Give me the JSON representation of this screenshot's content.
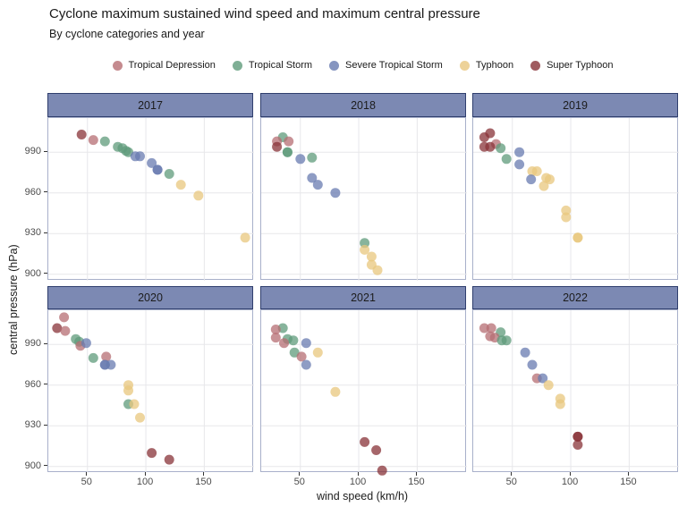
{
  "header": {
    "title": "Cyclone maximum sustained wind speed and maximum central pressure",
    "subtitle": "By cyclone categories and year"
  },
  "axes": {
    "x_label": "wind speed (km/h)",
    "y_label": "central pressure (hPa)",
    "x_tick_labels": [
      "50",
      "100",
      "150"
    ],
    "y_tick_labels": [
      "990",
      "960",
      "930",
      "900"
    ]
  },
  "chart_data": {
    "type": "scatter",
    "title": "Cyclone maximum sustained wind speed and maximum central pressure",
    "subtitle": "By cyclone categories and year",
    "xlabel": "wind speed (km/h)",
    "ylabel": "central pressure (hPa)",
    "xlim": [
      16.5,
      192.6
    ],
    "ylim": [
      895.2,
      1015.2
    ],
    "x_ticks": [
      50,
      100,
      150
    ],
    "y_ticks": [
      990,
      960,
      930,
      900
    ],
    "grid": true,
    "legend_position": "top",
    "point_opacity": 0.75,
    "categories": [
      {
        "code": "TD",
        "label": "Tropical Depression",
        "color": "#b66e73"
      },
      {
        "code": "TS",
        "label": "Tropical Storm",
        "color": "#5f9b7b"
      },
      {
        "code": "STS",
        "label": "Severe Tropical Storm",
        "color": "#687bb0"
      },
      {
        "code": "TY",
        "label": "Typhoon",
        "color": "#e8c77e"
      },
      {
        "code": "STY",
        "label": "Super Typhoon",
        "color": "#883338"
      }
    ],
    "facets": [
      {
        "label": "2017",
        "points": [
          [
            "STY",
            45,
            1003
          ],
          [
            "TD",
            55,
            999
          ],
          [
            "TS",
            65,
            998
          ],
          [
            "TS",
            76,
            994
          ],
          [
            "TS",
            80,
            993
          ],
          [
            "TS",
            83,
            991
          ],
          [
            "TS",
            85,
            990
          ],
          [
            "STS",
            91,
            987
          ],
          [
            "STS",
            95,
            987
          ],
          [
            "STS",
            105,
            982
          ],
          [
            "STS",
            110,
            977
          ],
          [
            "STS",
            110,
            977
          ],
          [
            "TS",
            120,
            974
          ],
          [
            "TY",
            130,
            966
          ],
          [
            "TY",
            145,
            958
          ],
          [
            "TY",
            185,
            927
          ]
        ]
      },
      {
        "label": "2018",
        "points": [
          [
            "TS",
            35,
            1001
          ],
          [
            "TD",
            30,
            998
          ],
          [
            "TD",
            40,
            998
          ],
          [
            "STY",
            30,
            994
          ],
          [
            "TS",
            39,
            990
          ],
          [
            "TS",
            39,
            990
          ],
          [
            "STS",
            50,
            985
          ],
          [
            "TS",
            60,
            986
          ],
          [
            "STS",
            60,
            971
          ],
          [
            "STS",
            65,
            966
          ],
          [
            "STS",
            80,
            960
          ],
          [
            "TS",
            105,
            923
          ],
          [
            "TY",
            105,
            918
          ],
          [
            "TY",
            111,
            913
          ],
          [
            "TY",
            111,
            907
          ],
          [
            "TY",
            116,
            903
          ]
        ]
      },
      {
        "label": "2019",
        "points": [
          [
            "STY",
            31,
            1004
          ],
          [
            "STY",
            26,
            1001
          ],
          [
            "TD",
            36,
            996
          ],
          [
            "STY",
            26,
            994
          ],
          [
            "STY",
            31,
            994
          ],
          [
            "TS",
            40,
            993
          ],
          [
            "STS",
            56,
            990
          ],
          [
            "TS",
            45,
            985
          ],
          [
            "STS",
            56,
            981
          ],
          [
            "TY",
            67,
            976
          ],
          [
            "TY",
            71,
            976
          ],
          [
            "STS",
            66,
            970
          ],
          [
            "TY",
            79,
            971
          ],
          [
            "TY",
            82,
            970
          ],
          [
            "TY",
            77,
            965
          ],
          [
            "TY",
            96,
            947
          ],
          [
            "TY",
            96,
            942
          ],
          [
            "TY",
            106,
            927
          ],
          [
            "TY",
            106,
            927
          ]
        ]
      },
      {
        "label": "2020",
        "points": [
          [
            "TD",
            30,
            1010
          ],
          [
            "STY",
            24,
            1002
          ],
          [
            "TD",
            31,
            1000
          ],
          [
            "TS",
            40,
            994
          ],
          [
            "TS",
            43,
            992
          ],
          [
            "TD",
            44,
            989
          ],
          [
            "STS",
            49,
            991
          ],
          [
            "TS",
            55,
            980
          ],
          [
            "TD",
            66,
            981
          ],
          [
            "STS",
            65,
            975
          ],
          [
            "STS",
            65,
            975
          ],
          [
            "STS",
            70,
            975
          ],
          [
            "TY",
            85,
            960
          ],
          [
            "TY",
            85,
            956
          ],
          [
            "TS",
            85,
            946
          ],
          [
            "TY",
            90,
            946
          ],
          [
            "TY",
            95,
            936
          ],
          [
            "STY",
            105,
            910
          ],
          [
            "STY",
            120,
            905
          ]
        ]
      },
      {
        "label": "2021",
        "points": [
          [
            "TS",
            35,
            1002
          ],
          [
            "TD",
            29,
            1001
          ],
          [
            "TD",
            29,
            995
          ],
          [
            "TS",
            39,
            994
          ],
          [
            "TS",
            44,
            993
          ],
          [
            "TD",
            36,
            991
          ],
          [
            "STS",
            55,
            991
          ],
          [
            "TS",
            45,
            984
          ],
          [
            "TY",
            65,
            984
          ],
          [
            "TD",
            51,
            981
          ],
          [
            "STS",
            55,
            975
          ],
          [
            "TY",
            80,
            955
          ],
          [
            "STY",
            105,
            918
          ],
          [
            "STY",
            115,
            912
          ],
          [
            "STY",
            120,
            897
          ]
        ]
      },
      {
        "label": "2022",
        "points": [
          [
            "TD",
            26,
            1002
          ],
          [
            "TD",
            32,
            1002
          ],
          [
            "TS",
            40,
            999
          ],
          [
            "TD",
            31,
            996
          ],
          [
            "TD",
            35,
            995
          ],
          [
            "TS",
            41,
            993
          ],
          [
            "TS",
            45,
            993
          ],
          [
            "STS",
            61,
            984
          ],
          [
            "STS",
            67,
            975
          ],
          [
            "TD",
            71,
            965
          ],
          [
            "STS",
            76,
            965
          ],
          [
            "TY",
            81,
            960
          ],
          [
            "TY",
            91,
            950
          ],
          [
            "TY",
            91,
            946
          ],
          [
            "STY",
            106,
            922
          ],
          [
            "STY",
            106,
            922
          ],
          [
            "STY",
            106,
            916
          ]
        ]
      }
    ]
  }
}
